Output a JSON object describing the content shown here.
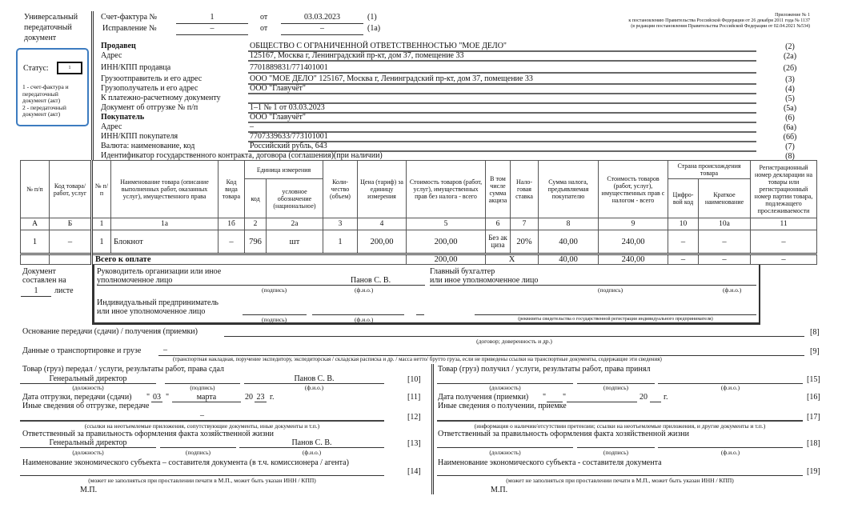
{
  "left": {
    "doc_title": [
      "Универсальный",
      "передаточный",
      "документ"
    ],
    "status_label": "Статус:",
    "status_value": "1",
    "status_notes": [
      "1 - счет-фактура и",
      "передаточный",
      "документ (акт)",
      "2 - передаточный",
      "документ (акт)"
    ],
    "sheets_label_1": "Документ",
    "sheets_label_2": "составлен на",
    "sheets_count": "1",
    "sheets_suffix": "листе"
  },
  "annex": [
    "Приложение № 1",
    "к постановлению Правительства Российской Федерации от 26 декабря 2011 года № 1137",
    "(в редакции постановления Правительства Российской Федерации от 02.04.2021 №534)"
  ],
  "header": {
    "invoice_label": "Счет-фактура №",
    "invoice_number": "1",
    "from_label": "от",
    "invoice_date": "03.03.2023",
    "invoice_code": "(1)",
    "correction_label": "Исправление №",
    "correction_number": "–",
    "correction_date": "–",
    "correction_code": "(1а)"
  },
  "fields": [
    {
      "label": "Продавец",
      "value": "ОБЩЕСТВО С ОГРАНИЧЕННОЙ ОТВЕТСТВЕННОСТЬЮ \"МОЕ ДЕЛО\"",
      "code": "(2)"
    },
    {
      "label": "Адрес",
      "value": "125167, Москва г, Ленинградский пр-кт, дом 37, помещение 33",
      "code": "(2а)"
    },
    {
      "label": "ИНН/КПП продавца",
      "value": "7701889831/771401001",
      "code": "(2б)"
    },
    {
      "label": "Грузоотправитель и его адрес",
      "value": "ООО  \"МОЕ ДЕЛО\" 125167, Москва г, Ленинградский пр-кт, дом 37, помещение 33",
      "code": "(3)"
    },
    {
      "label": "Грузополучатель и его адрес",
      "value": "ООО \"Главучёт\"",
      "code": "(4)"
    },
    {
      "label": "К платежно-расчетному документу",
      "value": "",
      "code": "(5)"
    },
    {
      "label": "Документ об отгрузке № п/п",
      "value": "1–1 № 1 от 03.03.2023",
      "code": "(5а)"
    },
    {
      "label": "Покупатель",
      "value": "ООО \"Главучёт\"",
      "code": "(6)"
    },
    {
      "label": "Адрес",
      "value": "–",
      "code": "(6а)"
    },
    {
      "label": "ИНН/КПП покупателя",
      "value": "7707339633/773101001",
      "code": "(6б)"
    },
    {
      "label": "Валюта: наименование, код",
      "value": "Российский рубль, 643",
      "code": "(7)"
    },
    {
      "label": "Идентификатор государственного контракта, договора (соглашения)(при наличии)",
      "value": "",
      "code": "(8)"
    }
  ],
  "table": {
    "h": {
      "np1": "№ п/п",
      "goods_code": "Код товара/ работ, услуг",
      "np2": "№ п/п",
      "name": "Наименование товара (описание выполненных работ, оказанных услуг), имущественного права",
      "kind_code": "Код вида товара",
      "unit": "Единица измерения",
      "unit_code": "код",
      "unit_name": "условное обозначение (национальное)",
      "qty": "Коли-чество (объем)",
      "price": "Цена (тариф) за единицу измерения",
      "cost_wo_tax": "Стоимость товаров (работ, услуг), имущественных прав без налога - всего",
      "excise": "В том числе сумма акциза",
      "rate": "Нало-говая ставка",
      "tax": "Сумма налога, предъявляемая покупателю",
      "cost_w_tax": "Стоимость товаров (работ, услуг), имущественных прав с налогом - всего",
      "country": "Страна происхождения товара",
      "country_code": "Цифро-вой код",
      "country_name": "Краткое наименование",
      "reg_number": "Регистрационный номер декларации на товары или регистрационный номер партии товара, подлежащего прослеживаемости"
    },
    "col_numbers": [
      "А",
      "Б",
      "1",
      "1а",
      "1б",
      "2",
      "2а",
      "3",
      "4",
      "5",
      "6",
      "7",
      "8",
      "9",
      "10",
      "10а",
      "11"
    ],
    "rows": [
      [
        "1",
        "–",
        "1",
        "Блокнот",
        "–",
        "796",
        "шт",
        "1",
        "200,00",
        "200,00",
        "Без акциза",
        "20%",
        "40,00",
        "240,00",
        "–",
        "–",
        "–"
      ]
    ],
    "total": {
      "label": "Всего к оплате",
      "cost_wo_tax": "200,00",
      "excise_rate": "X",
      "tax": "40,00",
      "cost_w_tax": "240,00",
      "c10": "–",
      "c10a": "–",
      "c11": "–"
    }
  },
  "signatures": {
    "head_label_1": "Руководитель организации или иное",
    "head_label_2": "уполномоченное лицо",
    "head_name": "Панов С. В.",
    "accountant_label_1": "Главный бухгалтер",
    "accountant_label_2": "или иное уполномоченное лицо",
    "ie_label_1": "Индивидуальный предприниматель",
    "ie_label_2": "или иное уполномоченное лицо",
    "cap_sign": "(подпись)",
    "cap_fio": "(ф.и.о.)",
    "cap_ie_reg": "(реквизиты свидетельства о государственной регистрации индивидуального предпринимателя)"
  },
  "basis": {
    "label": "Основание передачи (сдачи) / получения (приемки)",
    "caption": "(договор; доверенность и др.)",
    "code": "[8]"
  },
  "transport": {
    "label": "Данные о транспортировке и грузе",
    "value": "–",
    "caption": "(транспортная накладная, поручение экспедитору, экспедиторская / складская расписка и др. / масса нетто/ брутто груза, если не приведены ссылки на транспортные документы, содержащие эти сведения)",
    "code": "[9]"
  },
  "transfer": {
    "title": "Товар (груз) передал / услуги, результаты работ, права сдал",
    "position": "Генеральный директор",
    "name": "Панов С. В.",
    "code10": "[10]",
    "cap_position": "(должность)",
    "cap_sign": "(подпись)",
    "cap_fio": "(ф.и.о.)",
    "date_label": "Дата отгрузки, передачи (сдачи)",
    "day": "03",
    "month": "марта",
    "year_prefix": "20",
    "year": "23",
    "year_suffix": "г.",
    "code11": "[11]",
    "other_label": "Иные сведения об отгрузке, передаче",
    "other_value": "–",
    "other_caption": "(ссылки на неотъемлемые приложения, сопутствующие документы, иные документы и т.п.)",
    "code12": "[12]",
    "resp_label": "Ответственный за правильность оформления факта хозяйственной жизни",
    "resp_position": "Генеральный директор",
    "resp_name": "Панов С. В.",
    "code13": "[13]",
    "entity_label": "Наименование экономического субъекта – составителя документа (в т.ч. комиссионера / агента)",
    "entity_caption": "(может не заполняться при проставлении печати в М.П., может быть указан ИНН / КПП)",
    "code14": "[14]",
    "stamp": "М.П."
  },
  "receipt": {
    "title": "Товар (груз) получил / услуги, результаты работ, права принял",
    "code15": "[15]",
    "cap_position": "(должность)",
    "cap_sign": "(подпись)",
    "cap_fio": "(ф.и.о.)",
    "date_label": "Дата получения (приемки)",
    "year_prefix": "20",
    "year_suffix": "г.",
    "code16": "[16]",
    "other_label": "Иные сведения о получении, приемке",
    "other_caption": "(информация о наличии/отсутствии претензии; ссылки на неотъемлемые приложения, и другие документы и т.п.)",
    "code17": "[17]",
    "resp_label": "Ответственный за правильность оформления факта хозяйственной жизни",
    "code18": "[18]",
    "entity_label": "Наименование экономического субъекта - составителя документа",
    "entity_caption": "(может не заполняться при проставлении печати в М.П., может быть указан ИНН / КПП)",
    "code19": "[19]",
    "stamp": "М.П."
  },
  "colors": {
    "status_border": "#3d7cc0"
  }
}
